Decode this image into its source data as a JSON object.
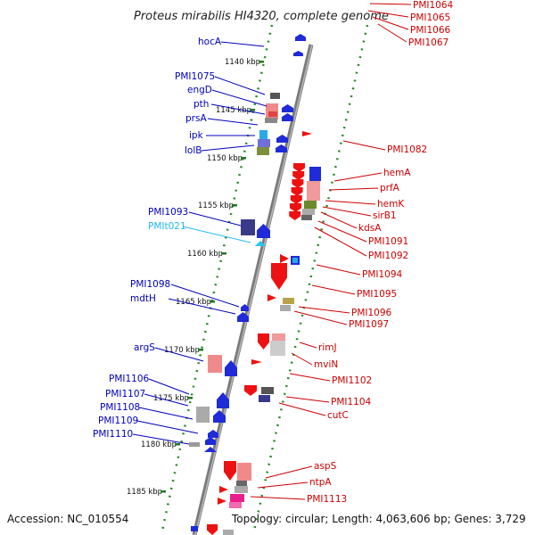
{
  "title": "Proteus mirabilis HI4320, complete genome",
  "accession_label": "Accession: NC_010554",
  "topology_label": "Topology: circular; Length: 4,063,606 bp; Genes: 3,729",
  "colors": {
    "left_label": "#0000bb",
    "trna_label": "#22bbee",
    "right_label": "#cc0000",
    "axis": "#888888",
    "tick": "#227722"
  },
  "scale_marks": [
    "1140 kbp",
    "1145 kbp",
    "1150 kbp",
    "1155 kbp",
    "1160 kbp",
    "1165 kbp",
    "1170 kbp",
    "1175 kbp",
    "1180 kbp",
    "1185 kbp"
  ],
  "left_genes": [
    "hocA",
    "PMI1075",
    "engD",
    "pth",
    "prsA",
    "ipk",
    "lolB",
    "PMI1093",
    "PMIt021",
    "PMI1098",
    "mdtH",
    "argS",
    "PMI1106",
    "PMI1107",
    "PMI1108",
    "PMI1109",
    "PMI1110"
  ],
  "right_genes": [
    "PMI1064",
    "PMI1065",
    "PMI1066",
    "PMI1067",
    "PMI1082",
    "hemA",
    "prfA",
    "hemK",
    "sirB1",
    "kdsA",
    "PMI1091",
    "PMI1092",
    "PMI1094",
    "PMI1095",
    "PMI1096",
    "PMI1097",
    "rimJ",
    "mviN",
    "PMI1102",
    "PMI1104",
    "cutC",
    "aspS",
    "ntpA",
    "PMI1113"
  ]
}
